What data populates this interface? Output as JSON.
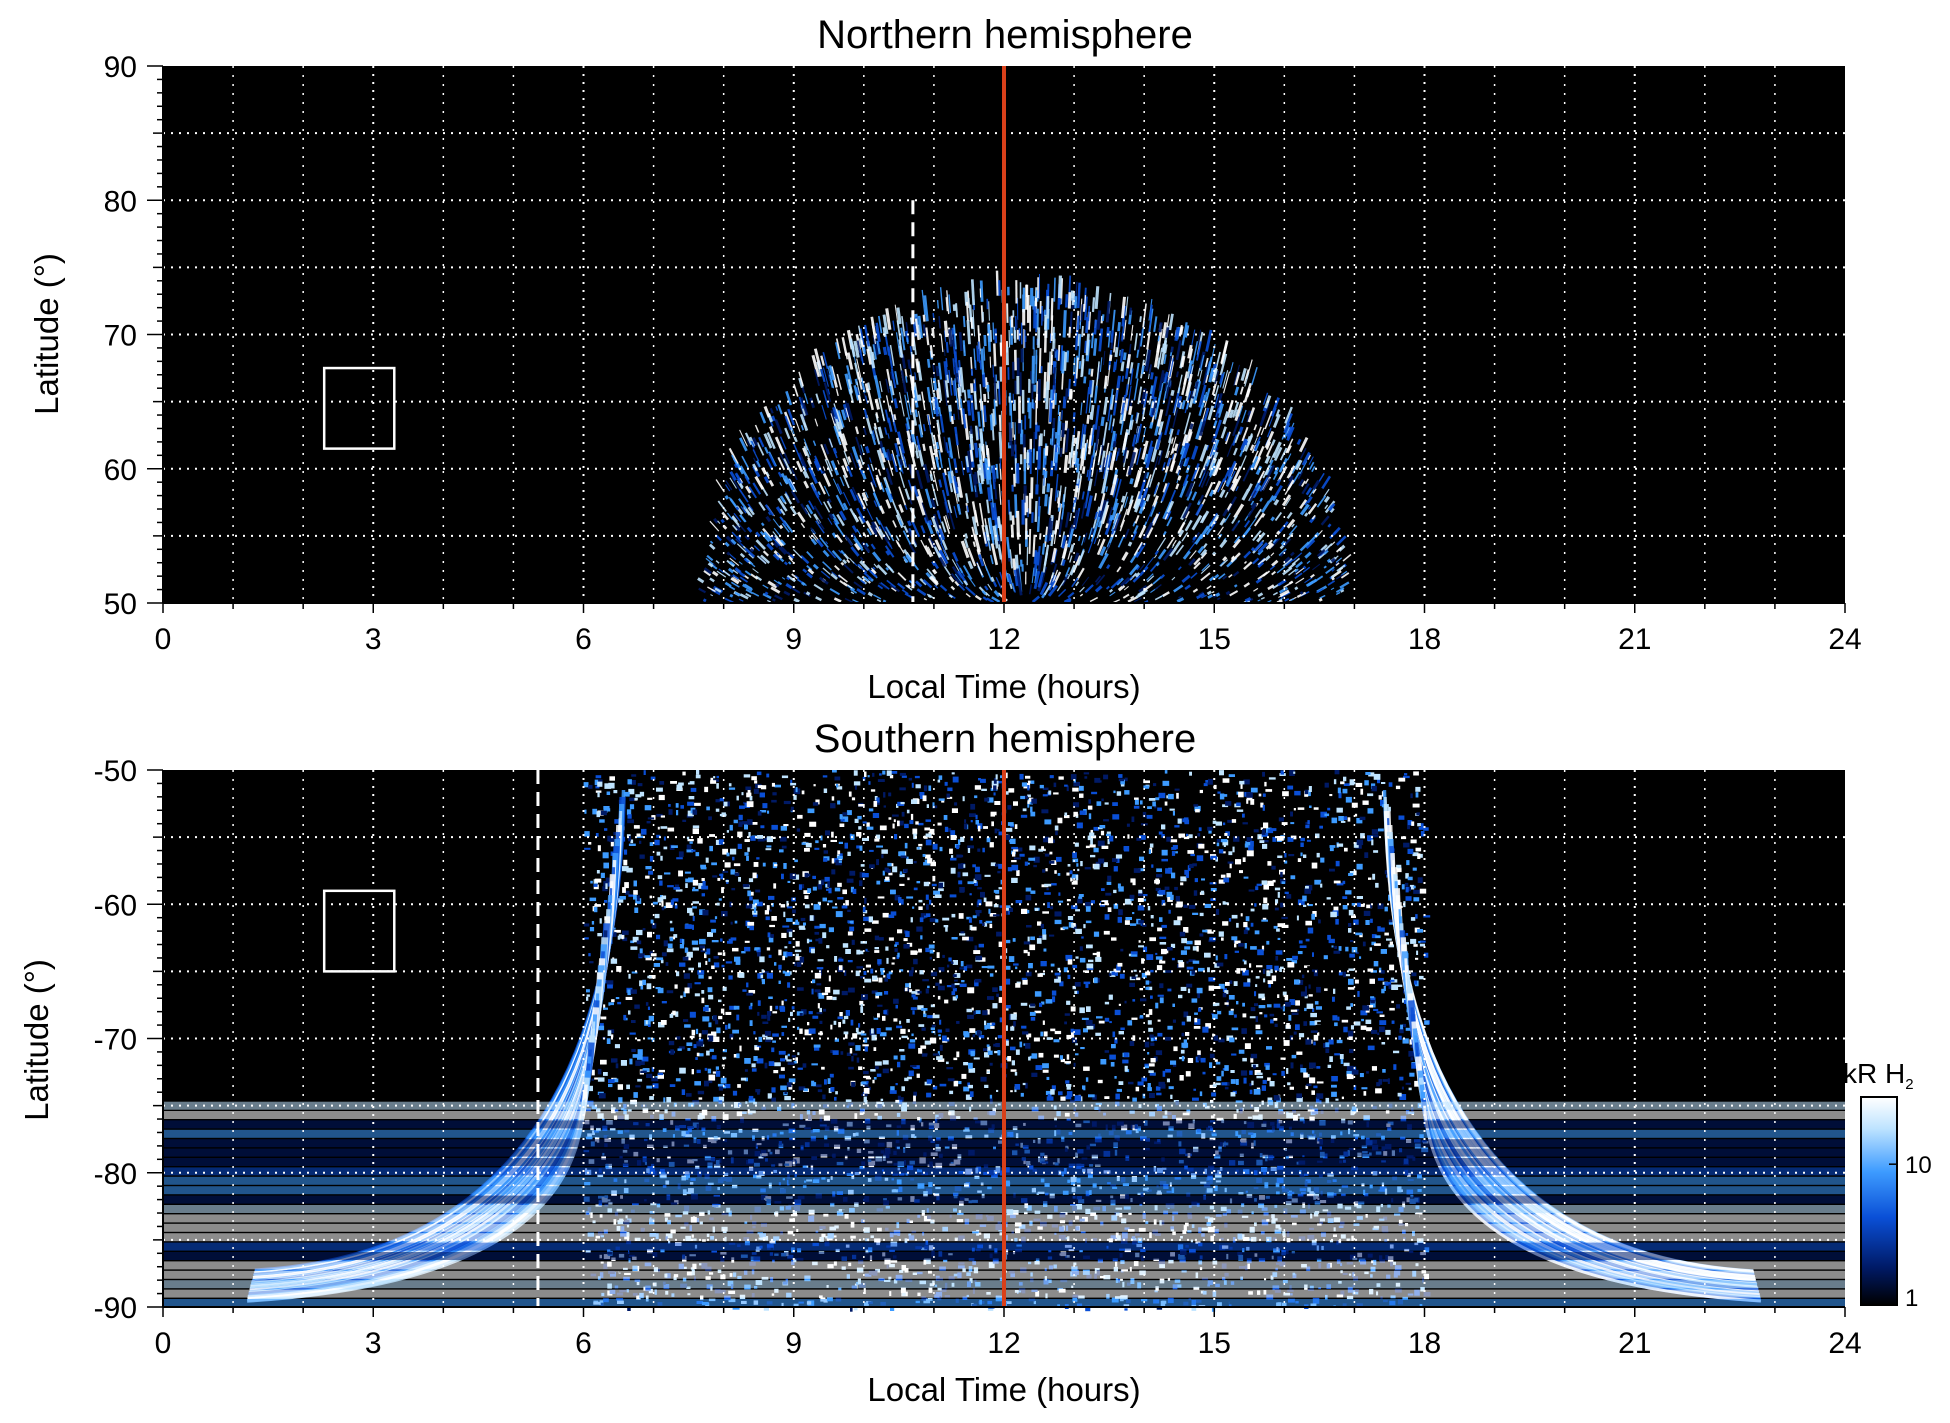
{
  "chart_data": [
    {
      "type": "heatmap",
      "title": "Northern hemisphere",
      "xlabel": "Local Time (hours)",
      "ylabel": "Latitude (°)",
      "xlim": [
        0,
        24
      ],
      "ylim": [
        50,
        90
      ],
      "xticks": [
        0,
        3,
        6,
        9,
        12,
        15,
        18,
        21,
        24
      ],
      "yticks": [
        50,
        60,
        70,
        80,
        90
      ],
      "grid": true,
      "background_color": "#000000",
      "colormap": [
        "#000000",
        "#001a66",
        "#0a4fd6",
        "#3d9bff",
        "#bfe4ff",
        "#ffffff"
      ],
      "emission": {
        "center_local_time": 12.3,
        "edge_latitude": 50,
        "peak_latitude": 73,
        "half_width_hours": 4.6
      },
      "reference_lines": [
        {
          "name": "red-line",
          "x": 12,
          "color": "#d9401a",
          "style": "solid"
        },
        {
          "name": "dashed-line",
          "x": 10.7,
          "color": "#ffffff",
          "style": "dashed",
          "y_range": [
            50,
            80
          ]
        }
      ],
      "box": {
        "x": [
          2.3,
          3.3
        ],
        "y": [
          61.5,
          67.5
        ],
        "color": "#ffffff"
      }
    },
    {
      "type": "heatmap",
      "title": "Southern hemisphere",
      "xlabel": "Local Time (hours)",
      "ylabel": "Latitude (°)",
      "xlim": [
        0,
        24
      ],
      "ylim": [
        -90,
        -50
      ],
      "xticks": [
        0,
        3,
        6,
        9,
        12,
        15,
        18,
        21,
        24
      ],
      "yticks": [
        -90,
        -80,
        -70,
        -60,
        -50
      ],
      "grid": true,
      "background_color": "#000000",
      "colormap": [
        "#000000",
        "#001a66",
        "#0a4fd6",
        "#3d9bff",
        "#bfe4ff",
        "#ffffff"
      ],
      "emission": {
        "inner_local_time": [
          6,
          18
        ],
        "edge_latitude": -75,
        "bright_oval_local_time": [
          5,
          19
        ]
      },
      "reference_lines": [
        {
          "name": "red-line",
          "x": 12,
          "color": "#d9401a",
          "style": "solid"
        },
        {
          "name": "dashed-line",
          "x": 5.35,
          "color": "#ffffff",
          "style": "dashed",
          "y_range": [
            -90,
            -50
          ]
        }
      ],
      "box": {
        "x": [
          2.3,
          3.3
        ],
        "y": [
          -65,
          -59
        ],
        "color": "#ffffff"
      },
      "colorbar": {
        "label_main": "kR H",
        "label_subscript": "2",
        "scale": "log",
        "range": [
          1,
          30
        ],
        "ticks": [
          {
            "value": 1,
            "label": "1"
          },
          {
            "value": 10,
            "label": "10"
          }
        ]
      }
    }
  ]
}
